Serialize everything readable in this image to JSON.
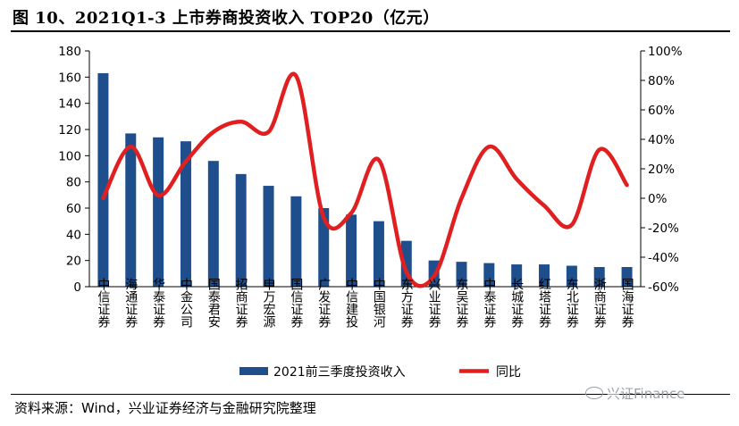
{
  "title": "图 10、2021Q1-3 上市券商投资收入 TOP20（亿元）",
  "source": "资料来源：Wind，兴业证券经济与金融研究院整理",
  "watermark": "兴证Finance",
  "colors": {
    "bar": "#1f4e8c",
    "line": "#e02020"
  },
  "chart_data": {
    "type": "bar+line",
    "categories": [
      "中信证券",
      "海通证券",
      "华泰证券",
      "中金公司",
      "国泰君安",
      "招商证券",
      "申万宏源",
      "国信证券",
      "广发证券",
      "中信建投",
      "中国银河",
      "东方证券",
      "兴业证券",
      "东吴证券",
      "中泰证券",
      "长城证券",
      "红塔证券",
      "东北证券",
      "浙商证券",
      "国海证券"
    ],
    "series": [
      {
        "name": "2021前三季度投资收入",
        "type": "bar",
        "axis": "left",
        "values": [
          163,
          117,
          114,
          111,
          96,
          86,
          77,
          69,
          60,
          55,
          50,
          35,
          20,
          19,
          18,
          17,
          17,
          16,
          15,
          15
        ]
      },
      {
        "name": "同比",
        "type": "line",
        "axis": "right",
        "unit": "%",
        "values": [
          0,
          35,
          2,
          25,
          45,
          52,
          45,
          83,
          -13,
          -10,
          26,
          -50,
          -53,
          0,
          35,
          13,
          -5,
          -18,
          33,
          9
        ]
      }
    ],
    "y_left": {
      "min": 0,
      "max": 180,
      "step": 20,
      "ticks": [
        "0",
        "20",
        "40",
        "60",
        "80",
        "100",
        "120",
        "140",
        "160",
        "180"
      ]
    },
    "y_right": {
      "min": -60,
      "max": 100,
      "step": 20,
      "ticks": [
        "-60%",
        "-40%",
        "-20%",
        "0%",
        "20%",
        "40%",
        "60%",
        "80%",
        "100%"
      ]
    },
    "legend": [
      "2021前三季度投资收入",
      "同比"
    ],
    "legend_position": "bottom-center"
  }
}
